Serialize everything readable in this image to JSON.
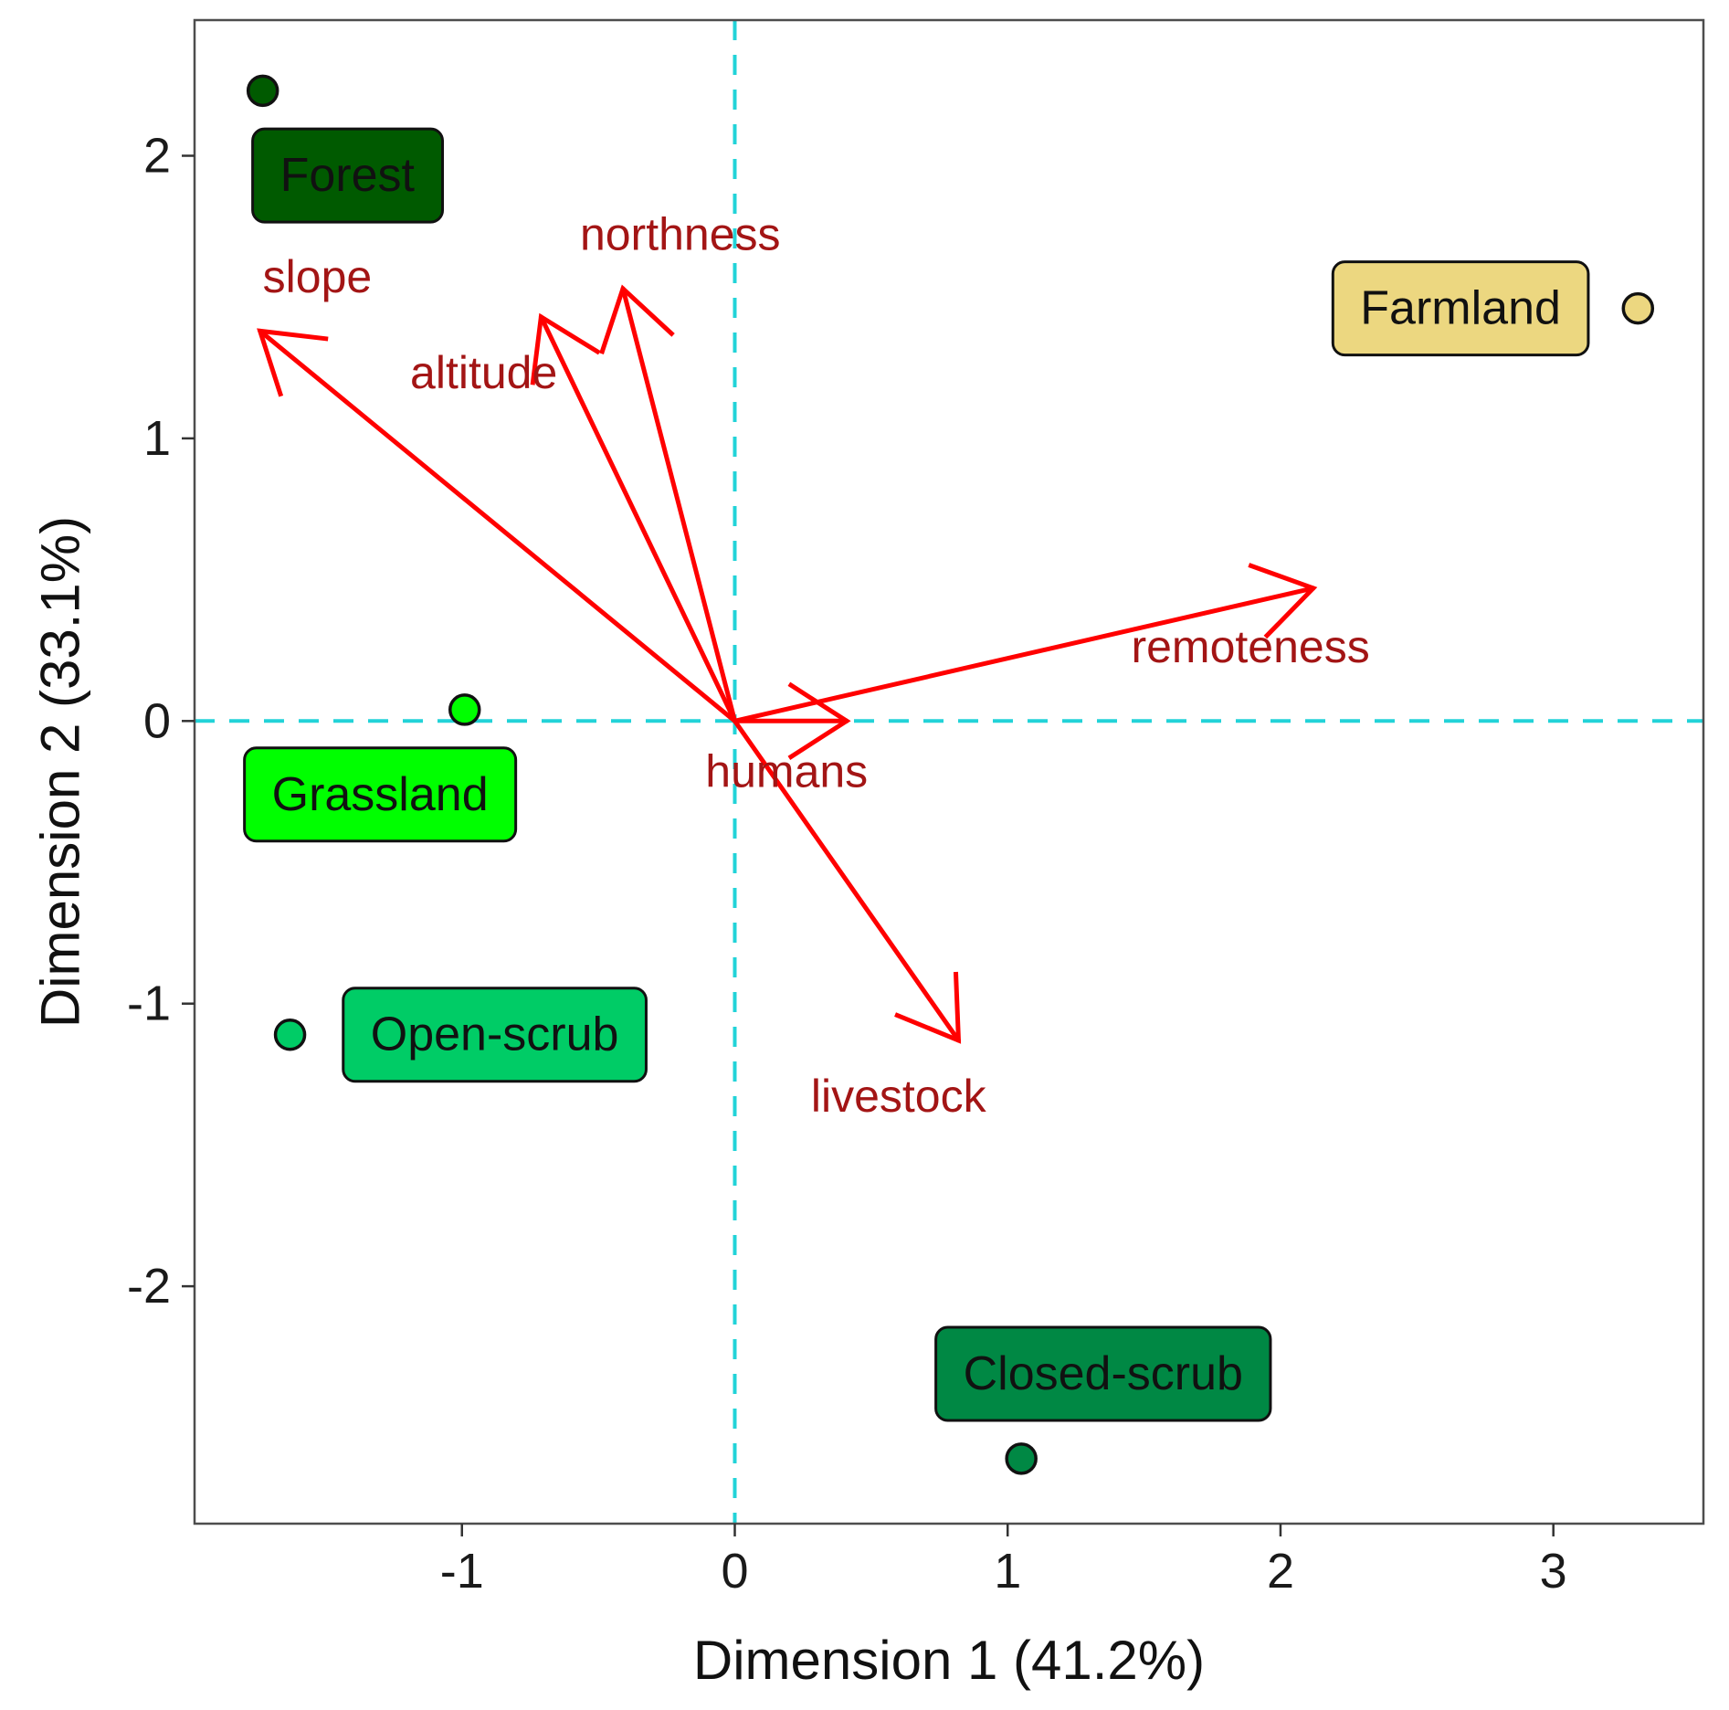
{
  "chart_data": {
    "type": "scatter",
    "xlabel": "Dimension 1 (41.2%)",
    "ylabel": "Dimension 2 (33.1%)",
    "xlim": [
      -1.98,
      3.55
    ],
    "ylim": [
      -2.84,
      2.48
    ],
    "x_ticks": [
      -1,
      0,
      1,
      2,
      3
    ],
    "y_ticks": [
      -2,
      -1,
      0,
      1,
      2
    ],
    "x_tick_labels": [
      "-1",
      "0",
      "1",
      "2",
      "3"
    ],
    "y_tick_labels": [
      "-2",
      "-1",
      "0",
      "1",
      "2"
    ],
    "grid": false,
    "reference_lines": {
      "x": 0,
      "y": 0,
      "style": "dashed",
      "color": "#22d3d8"
    },
    "groups": [
      {
        "name": "Forest",
        "x": -1.73,
        "y": 2.23,
        "label_x": -1.42,
        "label_y": 1.93,
        "fill": "#005a00"
      },
      {
        "name": "Farmland",
        "x": 3.31,
        "y": 1.46,
        "label_x": 2.66,
        "label_y": 1.46,
        "fill": "#ecd780"
      },
      {
        "name": "Grassland",
        "x": -0.99,
        "y": 0.04,
        "label_x": -1.3,
        "label_y": -0.26,
        "fill": "#00ff00"
      },
      {
        "name": "Open-scrub",
        "x": -1.63,
        "y": -1.11,
        "label_x": -0.88,
        "label_y": -1.11,
        "fill": "#00cc66"
      },
      {
        "name": "Closed-scrub",
        "x": 1.05,
        "y": -2.61,
        "label_x": 1.35,
        "label_y": -2.31,
        "fill": "#008844"
      }
    ],
    "vectors": [
      {
        "name": "slope",
        "x": -1.74,
        "y": 1.38,
        "label_x": -1.53,
        "label_y": 1.56
      },
      {
        "name": "altitude",
        "x": -0.71,
        "y": 1.43,
        "label_x": -0.92,
        "label_y": 1.22
      },
      {
        "name": "northness",
        "x": -0.41,
        "y": 1.53,
        "label_x": -0.2,
        "label_y": 1.71
      },
      {
        "name": "remoteness",
        "x": 2.12,
        "y": 0.47,
        "label_x": 1.89,
        "label_y": 0.25
      },
      {
        "name": "humans",
        "x": 0.41,
        "y": 0.0,
        "label_x": 0.19,
        "label_y": -0.19
      },
      {
        "name": "livestock",
        "x": 0.82,
        "y": -1.13,
        "label_x": 0.6,
        "label_y": -1.34
      }
    ],
    "vector_color": "#ff0000",
    "vector_label_color": "#a31515"
  }
}
